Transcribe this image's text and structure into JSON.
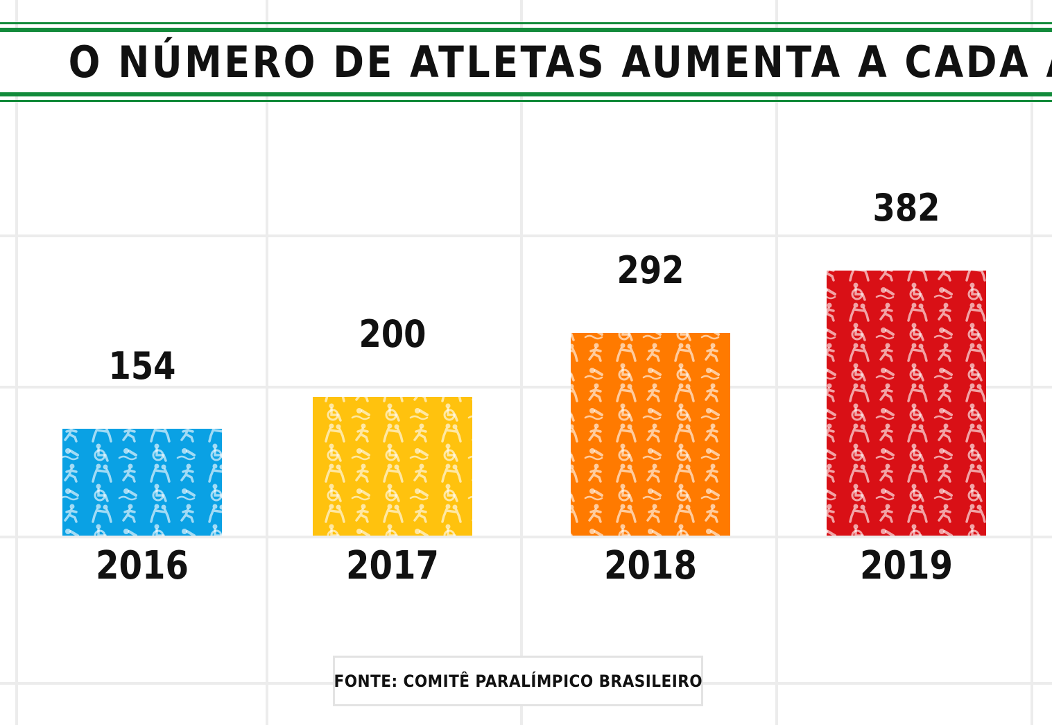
{
  "title": "O NÚMERO DE ATLETAS AUMENTA A CADA ANO",
  "source": "FONTE: COMITÊ PARALÍMPICO BRASILEIRO",
  "colors": {
    "title_rule": "#128a3a",
    "grid": "#ececec",
    "bars": [
      "#0aa1e4",
      "#ffc20e",
      "#ff7a00",
      "#d91016"
    ]
  },
  "bar_pattern_icons": [
    "swimming-icon",
    "wheelchair-basketball-icon",
    "para-athletics-icon",
    "judo-icon"
  ],
  "chart_data": {
    "type": "bar",
    "title": "O NÚMERO DE ATLETAS AUMENTA A CADA ANO",
    "categories": [
      "2016",
      "2017",
      "2018",
      "2019"
    ],
    "values": [
      154,
      200,
      292,
      382
    ],
    "data_labels": [
      "154",
      "200",
      "292",
      "382"
    ],
    "xlabel": "",
    "ylabel": "",
    "grid": false,
    "legend": "none"
  }
}
